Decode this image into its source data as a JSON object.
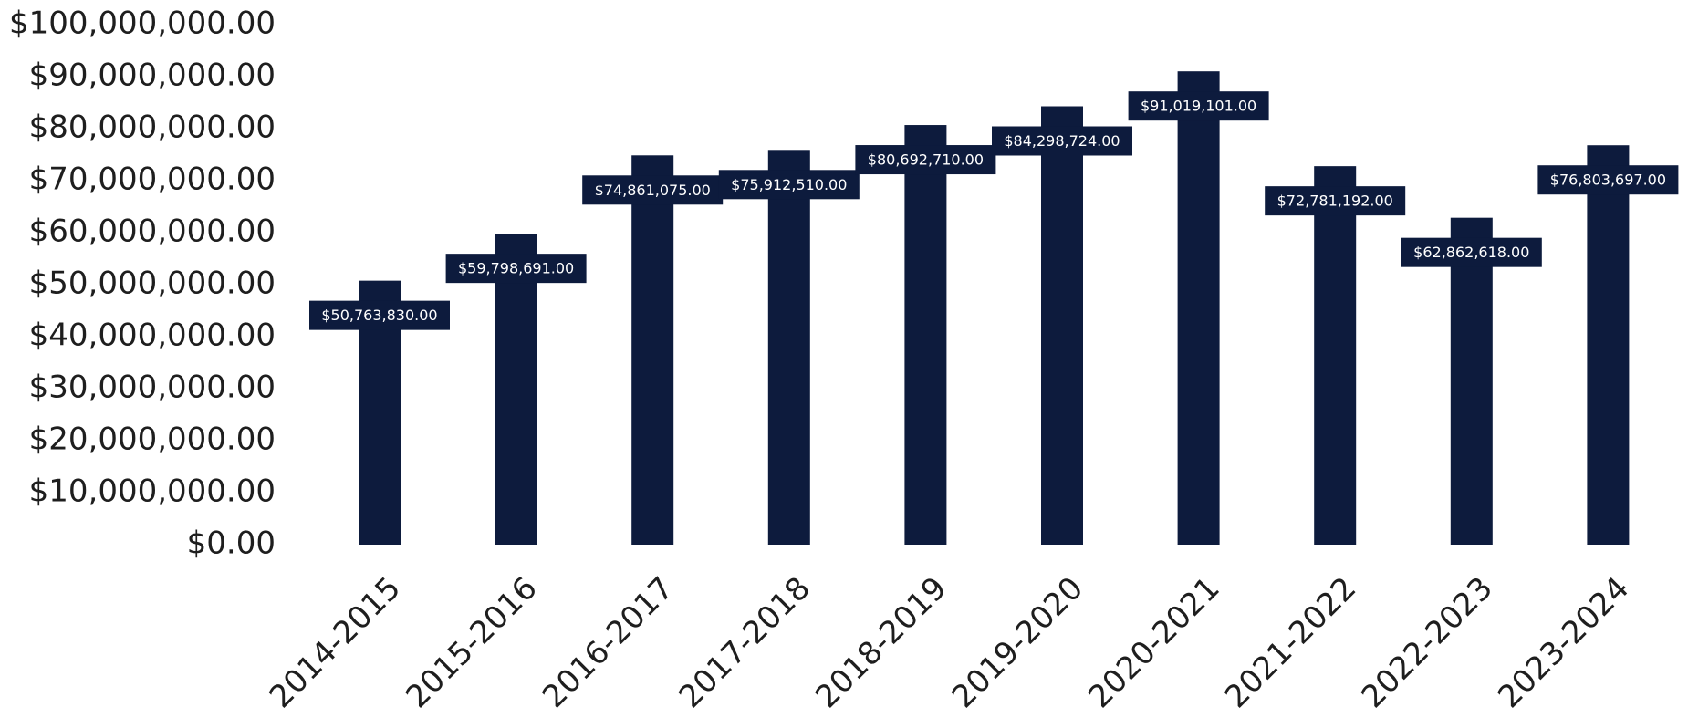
{
  "chart_data": {
    "type": "bar",
    "title": "",
    "xlabel": "",
    "ylabel": "",
    "categories": [
      "2014-2015",
      "2015-2016",
      "2016-2017",
      "2017-2018",
      "2018-2019",
      "2019-2020",
      "2020-2021",
      "2021-2022",
      "2022-2023",
      "2023-2024"
    ],
    "values": [
      50763830,
      59798691,
      74861075,
      75912510,
      80692710,
      84298724,
      91019101,
      72781192,
      62862618,
      76803697
    ],
    "data_labels": [
      "$50,763,830.00",
      "$59,798,691.00",
      "$74,861,075.00",
      "$75,912,510.00",
      "$80,692,710.00",
      "$84,298,724.00",
      "$91,019,101.00",
      "$72,781,192.00",
      "$62,862,618.00",
      "$76,803,697.00"
    ],
    "ylim": [
      0,
      100000000
    ],
    "yticks": [
      0,
      10000000,
      20000000,
      30000000,
      40000000,
      50000000,
      60000000,
      70000000,
      80000000,
      90000000,
      100000000
    ],
    "ytick_labels": [
      "$0.00",
      "$10,000,000.00",
      "$20,000,000.00",
      "$30,000,000.00",
      "$40,000,000.00",
      "$50,000,000.00",
      "$60,000,000.00",
      "$70,000,000.00",
      "$80,000,000.00",
      "$90,000,000.00",
      "$100,000,000.00"
    ],
    "grid": false,
    "legend": "none",
    "bar_color": "#0d1b3d",
    "label_box_color": "#0d1b3d",
    "label_text_color": "#ffffff"
  }
}
